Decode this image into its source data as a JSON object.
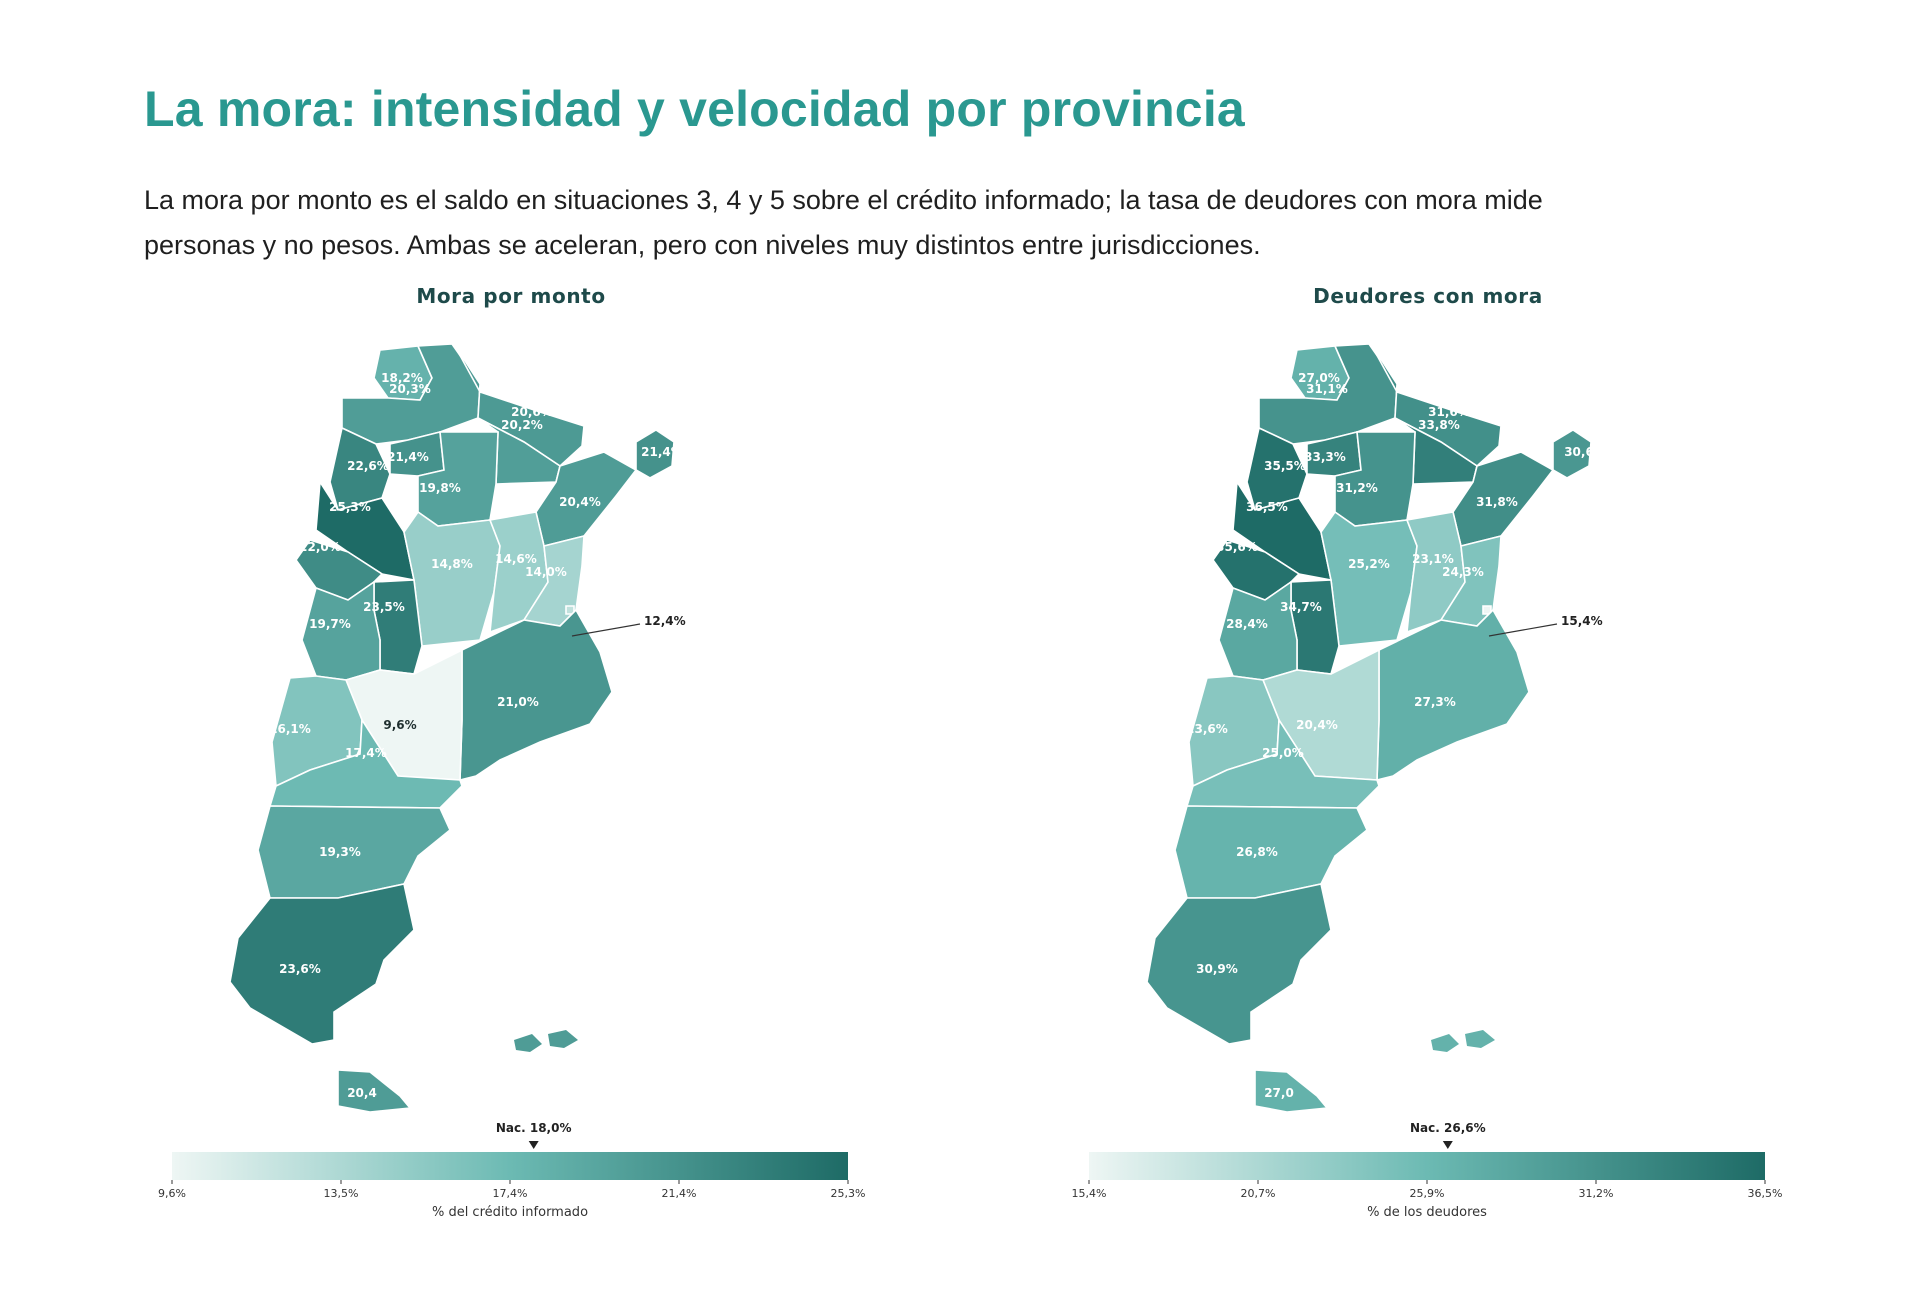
{
  "title": "La mora: intensidad y velocidad por provincia",
  "intro": {
    "line1": "La mora por monto es el saldo en situaciones 3, 4 y 5 sobre el crédito informado; la tasa de deudores con mora mide",
    "line2": "personas y no pesos. Ambas se aceleran, pero con niveles muy distintos entre jurisdicciones."
  },
  "colors": {
    "title": "#2a9890",
    "low": "#eef6f4",
    "mid": "#6cbab3",
    "high": "#1e6b66"
  },
  "chart_data": [
    {
      "type": "choropleth",
      "title": "Mora por monto",
      "legend_label": "% del crédito informado",
      "legend_ticks": [
        "9,6%",
        "13,5%",
        "17,4%",
        "21,4%",
        "25,3%"
      ],
      "range": [
        9.6,
        25.3
      ],
      "national": {
        "label": "Nac. 18,0%",
        "value": 18.0
      },
      "regions": [
        {
          "id": "jujuy",
          "label": "18,2%",
          "value": 18.2
        },
        {
          "id": "salta",
          "label": "20,3%",
          "value": 20.3
        },
        {
          "id": "formosa",
          "label": "20,6%",
          "value": 20.6
        },
        {
          "id": "chaco",
          "label": "20,2%",
          "value": 20.2
        },
        {
          "id": "misiones",
          "label": "21,4%",
          "value": 21.4
        },
        {
          "id": "catamarca",
          "label": "22,6%",
          "value": 22.6
        },
        {
          "id": "tucuman",
          "label": "21,4%",
          "value": 21.4
        },
        {
          "id": "santiago",
          "label": "19,8%",
          "value": 19.8
        },
        {
          "id": "corrientes",
          "label": "20,4%",
          "value": 20.4
        },
        {
          "id": "larioja",
          "label": "25,3%",
          "value": 25.3
        },
        {
          "id": "sanjuan",
          "label": "22,0%",
          "value": 22.0
        },
        {
          "id": "cordoba",
          "label": "14,8%",
          "value": 14.8
        },
        {
          "id": "santafe",
          "label": "14,6%",
          "value": 14.6
        },
        {
          "id": "entrerios",
          "label": "14,0%",
          "value": 14.0
        },
        {
          "id": "sanluis",
          "label": "23,5%",
          "value": 23.5
        },
        {
          "id": "mendoza",
          "label": "19,7%",
          "value": 19.7
        },
        {
          "id": "caba",
          "label": "12,4%",
          "value": 12.4
        },
        {
          "id": "buenosaires",
          "label": "21,0%",
          "value": 21.0
        },
        {
          "id": "lapampa",
          "label": "9,6%",
          "value": 9.6
        },
        {
          "id": "neuquen",
          "label": "16,1%",
          "value": 16.1
        },
        {
          "id": "rionegro",
          "label": "17,4%",
          "value": 17.4
        },
        {
          "id": "chubut",
          "label": "19,3%",
          "value": 19.3
        },
        {
          "id": "santacruz",
          "label": "23,6%",
          "value": 23.6
        },
        {
          "id": "tierradelfuego",
          "label": "20,4",
          "value": 20.4
        }
      ]
    },
    {
      "type": "choropleth",
      "title": "Deudores con mora",
      "legend_label": "% de los deudores",
      "legend_ticks": [
        "15,4%",
        "20,7%",
        "25,9%",
        "31,2%",
        "36,5%"
      ],
      "range": [
        15.4,
        36.5
      ],
      "national": {
        "label": "Nac. 26,6%",
        "value": 26.6
      },
      "regions": [
        {
          "id": "jujuy",
          "label": "27,0%",
          "value": 27.0
        },
        {
          "id": "salta",
          "label": "31,1%",
          "value": 31.1
        },
        {
          "id": "formosa",
          "label": "31,6%",
          "value": 31.6
        },
        {
          "id": "chaco",
          "label": "33,8%",
          "value": 33.8
        },
        {
          "id": "misiones",
          "label": "30,6",
          "value": 30.6
        },
        {
          "id": "catamarca",
          "label": "35,5%",
          "value": 35.5
        },
        {
          "id": "tucuman",
          "label": "33,3%",
          "value": 33.3
        },
        {
          "id": "santiago",
          "label": "31,2%",
          "value": 31.2
        },
        {
          "id": "corrientes",
          "label": "31,8%",
          "value": 31.8
        },
        {
          "id": "larioja",
          "label": "36,5%",
          "value": 36.5
        },
        {
          "id": "sanjuan",
          "label": "35,6%",
          "value": 35.6
        },
        {
          "id": "cordoba",
          "label": "25,2%",
          "value": 25.2
        },
        {
          "id": "santafe",
          "label": "23,1%",
          "value": 23.1
        },
        {
          "id": "entrerios",
          "label": "24,3%",
          "value": 24.3
        },
        {
          "id": "sanluis",
          "label": "34,7%",
          "value": 34.7
        },
        {
          "id": "mendoza",
          "label": "28,4%",
          "value": 28.4
        },
        {
          "id": "caba",
          "label": "15,4%",
          "value": 15.4
        },
        {
          "id": "buenosaires",
          "label": "27,3%",
          "value": 27.3
        },
        {
          "id": "lapampa",
          "label": "20,4%",
          "value": 20.4
        },
        {
          "id": "neuquen",
          "label": "23,6%",
          "value": 23.6
        },
        {
          "id": "rionegro",
          "label": "25,0%",
          "value": 25.0
        },
        {
          "id": "chubut",
          "label": "26,8%",
          "value": 26.8
        },
        {
          "id": "santacruz",
          "label": "30,9%",
          "value": 30.9
        },
        {
          "id": "tierradelfuego",
          "label": "27,0",
          "value": 27.0
        }
      ]
    }
  ]
}
